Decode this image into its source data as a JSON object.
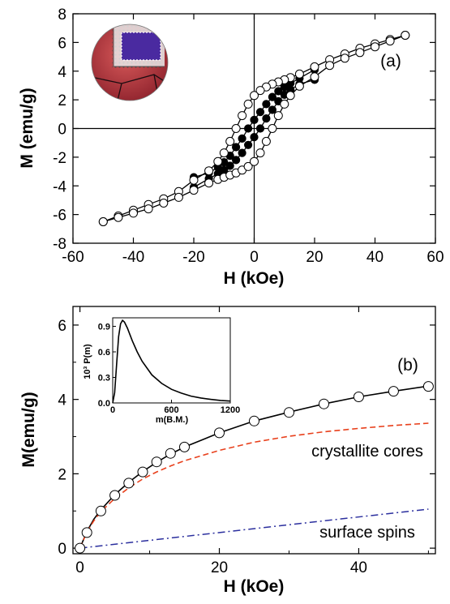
{
  "colors": {
    "marker_open": "#ffffff",
    "marker_filled": "#000000",
    "fit_line": "#000000",
    "core_line": "#e8401c",
    "surface_line": "#2b2f9e"
  },
  "chart_data": [
    {
      "type": "scatter",
      "panel_label": "(a)",
      "xlabel": "H (kOe)",
      "ylabel": "M (emu/g)",
      "xlim": [
        -60,
        60
      ],
      "ylim": [
        -8,
        8
      ],
      "xticks": [
        -60,
        -40,
        -20,
        0,
        20,
        40,
        60
      ],
      "yticks": [
        -8,
        -6,
        -4,
        -2,
        0,
        2,
        4,
        6,
        8
      ],
      "zero_lines": true,
      "inset_image": "core-shell-particle-illustration",
      "series": [
        {
          "marker": "open-circle",
          "branch": "descending",
          "x": [
            50,
            45,
            40,
            35,
            30,
            25,
            20,
            15,
            12,
            10,
            8,
            6,
            4,
            2,
            0,
            -2,
            -4,
            -6,
            -8,
            -10,
            -12,
            -15,
            -20,
            -25,
            -30,
            -35,
            -40,
            -45,
            -50
          ],
          "y": [
            6.5,
            6.2,
            5.9,
            5.6,
            5.2,
            4.8,
            4.3,
            3.8,
            3.55,
            3.4,
            3.25,
            3.1,
            2.9,
            2.65,
            2.3,
            1.7,
            0.9,
            0.0,
            -0.9,
            -1.7,
            -2.3,
            -2.95,
            -3.6,
            -4.4,
            -4.9,
            -5.3,
            -5.7,
            -6.1,
            -6.5
          ]
        },
        {
          "marker": "open-circle",
          "branch": "ascending",
          "x": [
            -50,
            -45,
            -40,
            -35,
            -30,
            -25,
            -20,
            -15,
            -12,
            -10,
            -8,
            -6,
            -4,
            -2,
            0,
            2,
            4,
            6,
            8,
            10,
            12,
            15,
            20,
            25,
            30,
            35,
            40,
            45,
            50
          ],
          "y": [
            -6.5,
            -6.2,
            -5.9,
            -5.6,
            -5.2,
            -4.8,
            -4.3,
            -3.8,
            -3.55,
            -3.4,
            -3.25,
            -3.1,
            -2.9,
            -2.65,
            -2.3,
            -1.7,
            -0.9,
            0.0,
            0.9,
            1.7,
            2.3,
            2.95,
            3.6,
            4.4,
            4.9,
            5.3,
            5.7,
            6.1,
            6.5
          ]
        },
        {
          "marker": "filled-circle",
          "branch": "descending",
          "x": [
            20,
            15,
            12,
            10,
            8,
            6,
            4,
            2,
            0,
            -2,
            -4,
            -6,
            -8,
            -10,
            -12,
            -15,
            -20
          ],
          "y": [
            4.1,
            3.5,
            3.15,
            2.9,
            2.6,
            2.2,
            1.7,
            1.15,
            0.6,
            0.0,
            -0.7,
            -1.3,
            -1.9,
            -2.35,
            -2.7,
            -3.1,
            -3.4
          ]
        },
        {
          "marker": "filled-circle",
          "branch": "ascending",
          "x": [
            -20,
            -15,
            -12,
            -10,
            -8,
            -6,
            -4,
            -2,
            0,
            2,
            4,
            6,
            8,
            10,
            12,
            15,
            20
          ],
          "y": [
            -4.1,
            -3.5,
            -3.15,
            -2.9,
            -2.6,
            -2.2,
            -1.7,
            -1.15,
            -0.6,
            0.0,
            0.7,
            1.3,
            1.9,
            2.35,
            2.7,
            3.1,
            3.4
          ]
        }
      ]
    },
    {
      "type": "line",
      "panel_label": "(b)",
      "xlabel": "H (kOe)",
      "ylabel": "M(emu/g)",
      "xlim": [
        -1,
        51
      ],
      "ylim": [
        -0.15,
        6.5
      ],
      "xticks": [
        0,
        20,
        40
      ],
      "yticks": [
        0,
        2,
        4,
        6
      ],
      "annotations": [
        "crystallite cores",
        "surface spins"
      ],
      "data_points": {
        "marker": "open-circle",
        "x": [
          0,
          1,
          3,
          5,
          7,
          9,
          11,
          13,
          15,
          20,
          25,
          30,
          35,
          40,
          45,
          50
        ],
        "y": [
          0.0,
          0.42,
          1.0,
          1.42,
          1.75,
          2.05,
          2.32,
          2.55,
          2.72,
          3.1,
          3.42,
          3.65,
          3.88,
          4.07,
          4.22,
          4.35
        ]
      },
      "series": [
        {
          "style": "solid",
          "x": [
            0,
            1,
            2,
            3,
            5,
            7,
            9,
            11,
            13,
            15,
            20,
            25,
            30,
            35,
            40,
            45,
            50
          ],
          "y": [
            0.0,
            0.45,
            0.78,
            1.03,
            1.44,
            1.77,
            2.06,
            2.31,
            2.53,
            2.72,
            3.1,
            3.42,
            3.66,
            3.88,
            4.07,
            4.22,
            4.36
          ]
        },
        {
          "style": "dashed",
          "x": [
            0,
            1,
            2,
            3,
            5,
            7,
            9,
            11,
            13,
            15,
            20,
            25,
            30,
            35,
            40,
            45,
            50
          ],
          "y": [
            0.0,
            0.43,
            0.74,
            0.98,
            1.34,
            1.62,
            1.86,
            2.05,
            2.21,
            2.35,
            2.63,
            2.85,
            3.01,
            3.13,
            3.22,
            3.3,
            3.36
          ]
        },
        {
          "style": "dash-dot",
          "x": [
            0,
            50
          ],
          "y": [
            0.0,
            1.05
          ]
        }
      ],
      "inset": {
        "type": "line",
        "xlabel": "m(B.M.)",
        "ylabel": "10³ P(m)",
        "xlim": [
          0,
          1200
        ],
        "ylim": [
          0,
          1.0
        ],
        "xticks": [
          0,
          600,
          1200
        ],
        "yticks": [
          0.0,
          0.3,
          0.6,
          0.9
        ],
        "ytick_labels": [
          "0.0",
          "0.3",
          "0.6",
          "0.9"
        ],
        "x": [
          0,
          20,
          40,
          60,
          80,
          100,
          120,
          150,
          200,
          250,
          300,
          400,
          500,
          600,
          700,
          800,
          900,
          1000,
          1100,
          1200
        ],
        "y": [
          0.0,
          0.12,
          0.45,
          0.78,
          0.93,
          0.97,
          0.95,
          0.88,
          0.73,
          0.6,
          0.49,
          0.33,
          0.23,
          0.16,
          0.115,
          0.08,
          0.058,
          0.042,
          0.03,
          0.022
        ]
      }
    }
  ]
}
